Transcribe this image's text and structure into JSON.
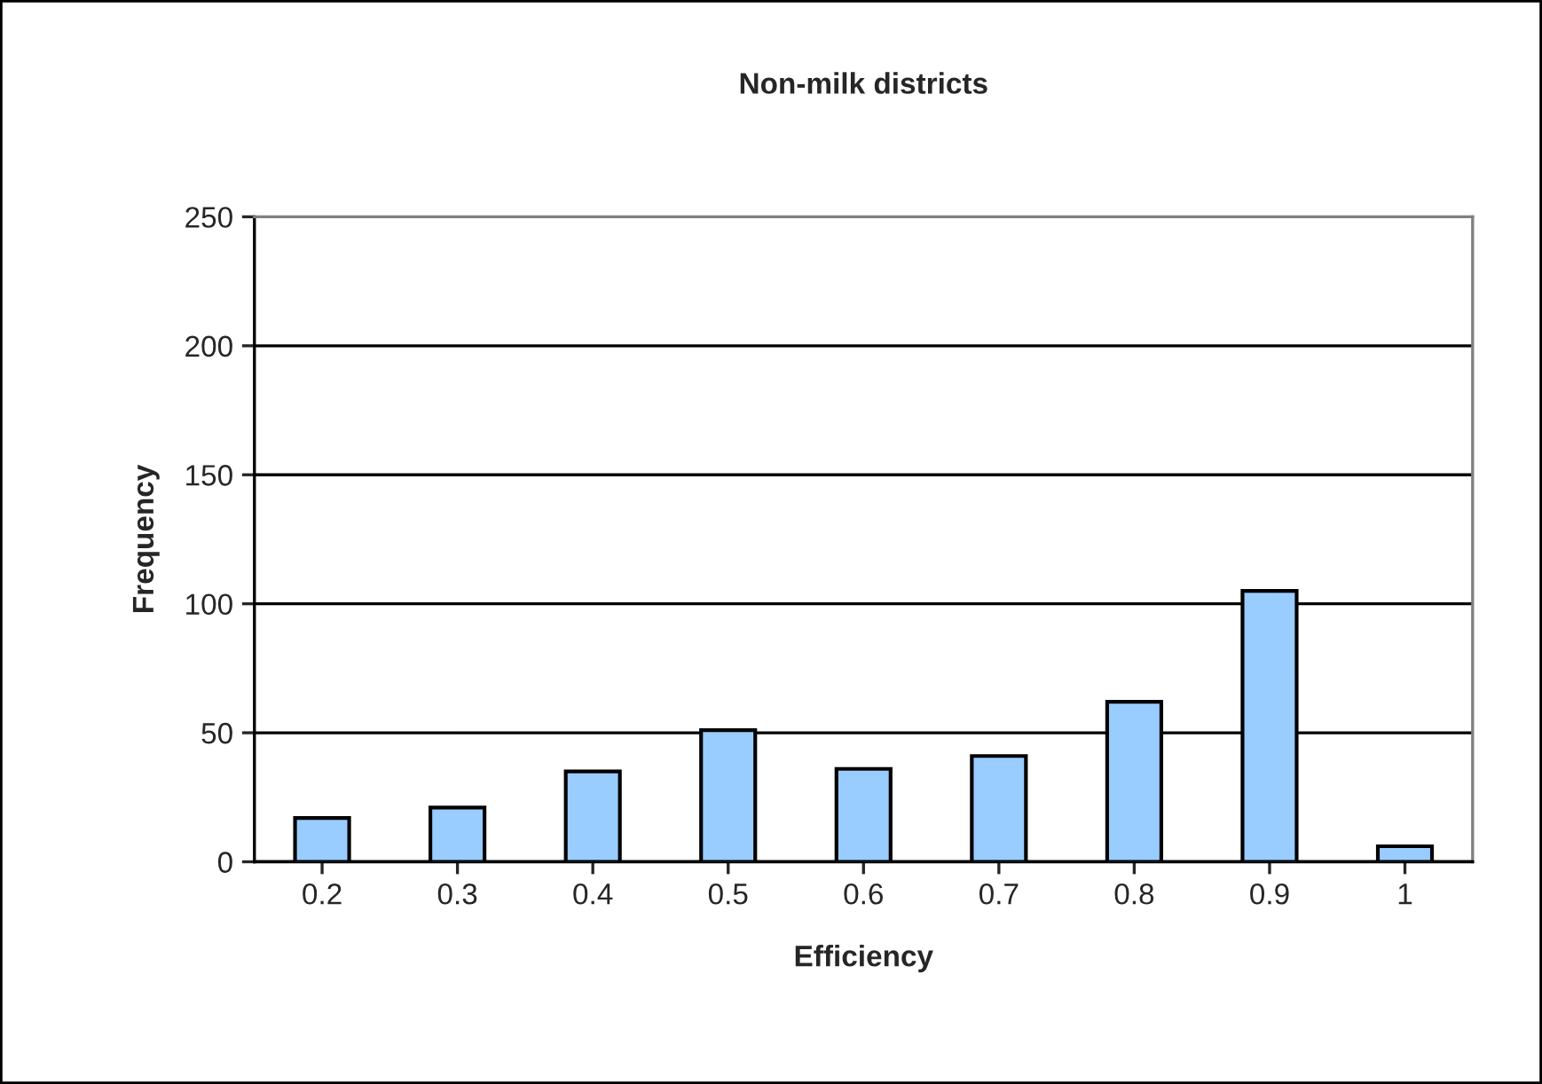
{
  "chart_data": {
    "type": "bar",
    "title": "Non-milk districts",
    "xlabel": "Efficiency",
    "ylabel": "Frequency",
    "categories": [
      "0.2",
      "0.3",
      "0.4",
      "0.5",
      "0.6",
      "0.7",
      "0.8",
      "0.9",
      "1"
    ],
    "values": [
      17,
      21,
      35,
      51,
      36,
      41,
      62,
      105,
      6
    ],
    "color": "#99ccff",
    "ylim": [
      0,
      250
    ],
    "yticks": [
      0,
      50,
      100,
      150,
      200,
      250
    ],
    "grid": "y"
  }
}
